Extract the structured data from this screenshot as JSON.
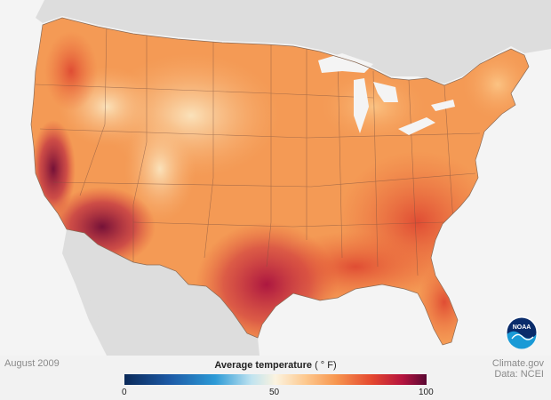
{
  "date_label": "August 2009",
  "legend": {
    "title": "Average temperature",
    "unit": "( ° F)",
    "min": "0",
    "mid": "50",
    "max": "100",
    "colors": [
      "#0b2a59",
      "#1d5aa6",
      "#2c9ad6",
      "#bfe3f0",
      "#fbf3df",
      "#fdc88e",
      "#f7964f",
      "#e4472f",
      "#b5143f",
      "#5a0833"
    ]
  },
  "credits": {
    "source": "Climate.gov",
    "data": "Data: NCEI"
  },
  "logo": {
    "icon": "noaa-logo-icon",
    "text": "NOAA"
  },
  "map": {
    "ocean_color": "#f4f4f4",
    "neighbor_land_color": "#dddddd",
    "us_base_color": "#f49a55",
    "state_border_color": "#7a5040"
  }
}
